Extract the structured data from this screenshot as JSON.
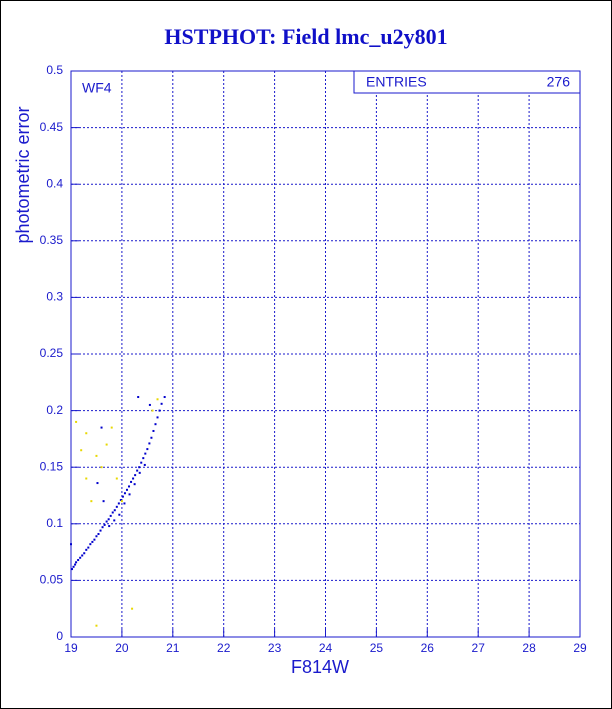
{
  "chart_data": {
    "type": "scatter",
    "title": "HSTPHOT: Field lmc_u2y801",
    "x_label": "F814W",
    "y_label": "photometric error",
    "annotation": "WF4",
    "stats": {
      "label": "ENTRIES",
      "value": 276
    },
    "xlim": [
      19,
      29
    ],
    "xticks": [
      19,
      20,
      21,
      22,
      23,
      24,
      25,
      26,
      27,
      28,
      29
    ],
    "ylim": [
      0,
      0.5
    ],
    "yticks": [
      0,
      0.05,
      0.1,
      0.15,
      0.2,
      0.25,
      0.3,
      0.35,
      0.4,
      0.45,
      0.5
    ],
    "grid": true,
    "series": [
      {
        "color": "#0000cc",
        "x": [
          19.02,
          19.05,
          19.08,
          19.1,
          19.14,
          19.18,
          19.22,
          19.26,
          19.3,
          19.34,
          19.38,
          19.42,
          19.46,
          19.5,
          19.54,
          19.58,
          19.62,
          19.66,
          19.7,
          19.74,
          19.78,
          19.82,
          19.86,
          19.9,
          19.94,
          19.98,
          20.02,
          20.06,
          20.1,
          20.14,
          20.18,
          20.22,
          20.26,
          20.3,
          20.34,
          20.38,
          20.42,
          20.46,
          20.5,
          20.54,
          20.58,
          20.62,
          20.66,
          20.7,
          20.74,
          20.78,
          20.84,
          19.85,
          19.95,
          20.05,
          20.15,
          20.25,
          19.75,
          20.35,
          20.45,
          19.6,
          20.32,
          19.52,
          19.64,
          19.0,
          20.55
        ],
        "y": [
          0.06,
          0.062,
          0.064,
          0.066,
          0.068,
          0.07,
          0.072,
          0.074,
          0.077,
          0.079,
          0.082,
          0.084,
          0.086,
          0.089,
          0.091,
          0.094,
          0.097,
          0.099,
          0.102,
          0.104,
          0.107,
          0.11,
          0.112,
          0.115,
          0.118,
          0.121,
          0.124,
          0.127,
          0.13,
          0.133,
          0.137,
          0.14,
          0.143,
          0.147,
          0.15,
          0.154,
          0.158,
          0.162,
          0.166,
          0.171,
          0.176,
          0.182,
          0.188,
          0.194,
          0.2,
          0.206,
          0.212,
          0.103,
          0.108,
          0.118,
          0.126,
          0.135,
          0.098,
          0.145,
          0.152,
          0.185,
          0.212,
          0.136,
          0.12,
          0.082,
          0.205
        ]
      },
      {
        "color": "#e8d800",
        "x": [
          19.1,
          19.3,
          19.5,
          19.7,
          19.6,
          19.9,
          19.4,
          20.0,
          19.5,
          20.2,
          20.6,
          20.7,
          19.2,
          19.8,
          19.3
        ],
        "y": [
          0.19,
          0.18,
          0.16,
          0.17,
          0.15,
          0.14,
          0.12,
          0.12,
          0.01,
          0.025,
          0.2,
          0.21,
          0.165,
          0.185,
          0.14
        ]
      }
    ]
  }
}
